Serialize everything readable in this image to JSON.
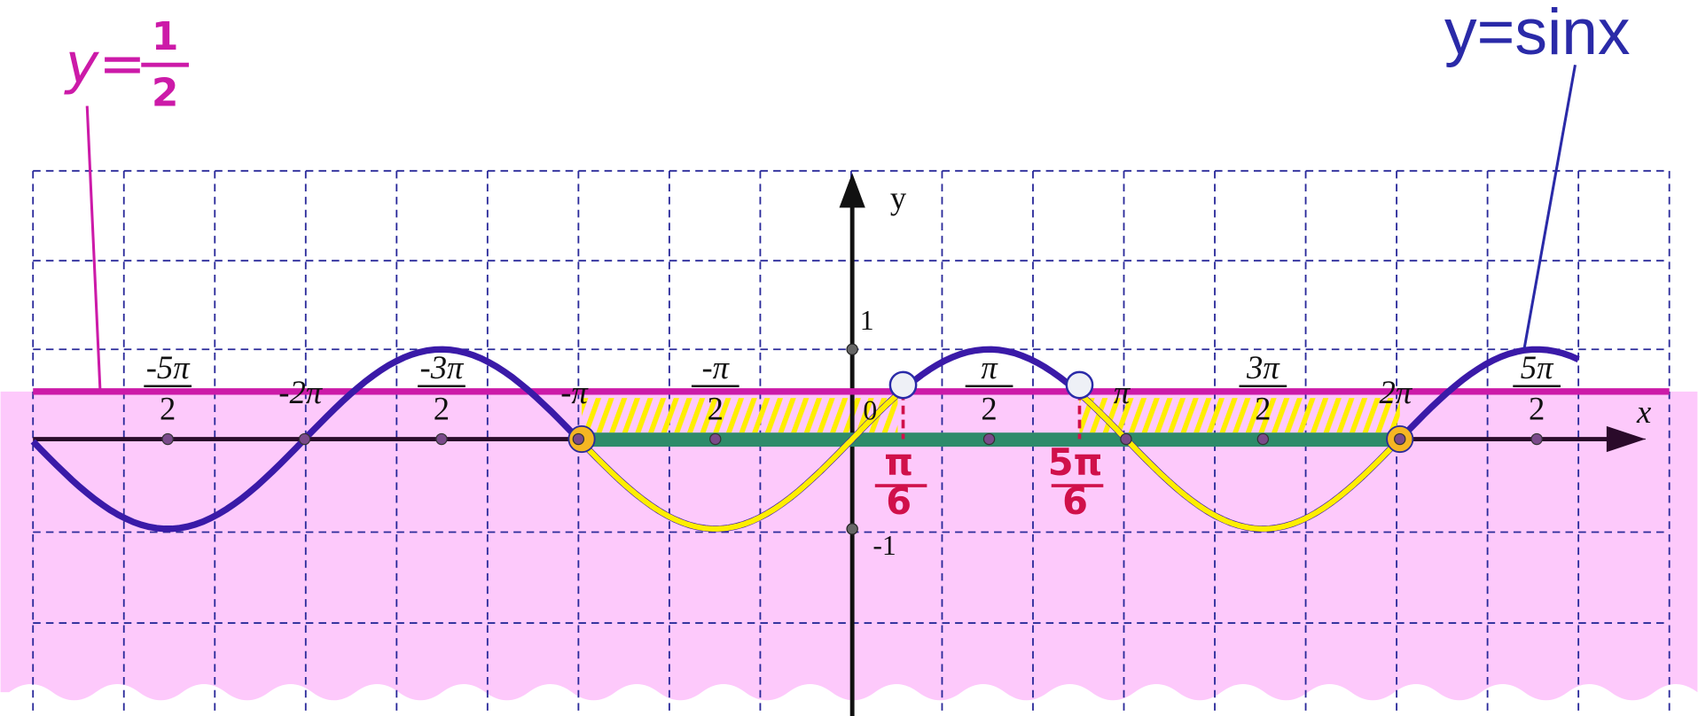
{
  "half_line_label": {
    "lhs": "y=",
    "numerator": "1",
    "denominator": "2"
  },
  "sine_label": "y=sinx",
  "axes": {
    "x": "x",
    "y": "y",
    "origin": "0",
    "one": "1",
    "minus_one": "-1"
  },
  "x_ticks": [
    {
      "numerator": "-5π",
      "denominator": "2"
    },
    {
      "label": "-2π"
    },
    {
      "numerator": "-3π",
      "denominator": "2"
    },
    {
      "label": "-π"
    },
    {
      "numerator": "-π",
      "denominator": "2"
    },
    {
      "numerator": "π",
      "denominator": "2"
    },
    {
      "label": "π"
    },
    {
      "numerator": "3π",
      "denominator": "2"
    },
    {
      "label": "2π"
    },
    {
      "numerator": "5π",
      "denominator": "2"
    }
  ],
  "roots": [
    {
      "numerator": "π",
      "denominator": "6"
    },
    {
      "numerator": "5π",
      "denominator": "6"
    }
  ]
}
